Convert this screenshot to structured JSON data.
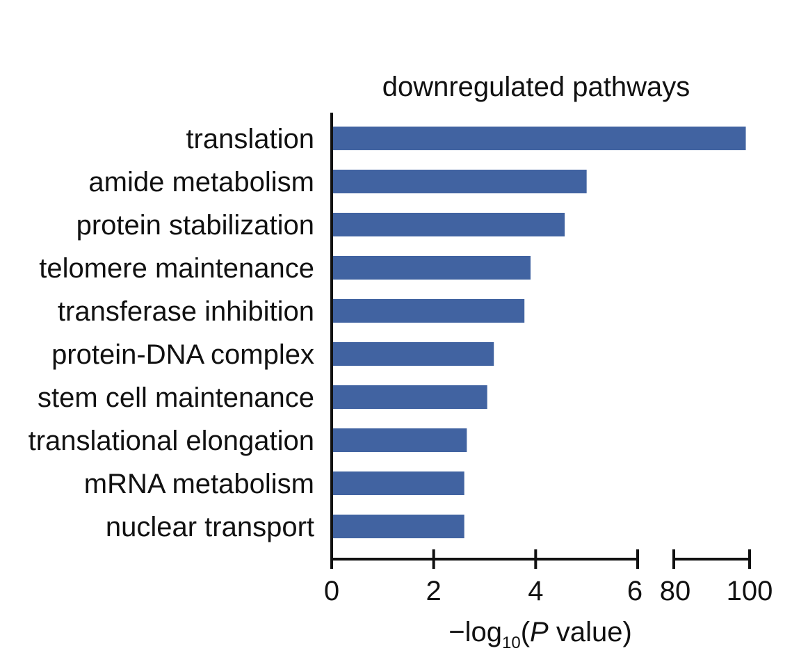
{
  "chart_data": {
    "type": "bar",
    "orientation": "horizontal",
    "title": "downregulated pathways",
    "xlabel": {
      "prefix": "−log",
      "subscript": "10",
      "open": "(",
      "italic": "P",
      "rest": " value)"
    },
    "ylabel": "",
    "categories": [
      "translation",
      "amide metabolism",
      "protein stabilization",
      "telomere maintenance",
      "transferase inhibition",
      "protein-DNA complex",
      "stem cell maintenance",
      "translational elongation",
      "mRNA metabolism",
      "nuclear transport"
    ],
    "values": [
      99,
      5.0,
      4.57,
      3.9,
      3.78,
      3.18,
      3.05,
      2.65,
      2.6,
      2.6
    ],
    "bar_color": "#4163a1",
    "axis_break": {
      "segments": [
        {
          "range": [
            0,
            6
          ],
          "ticks": [
            0,
            2,
            4,
            6
          ]
        },
        {
          "range": [
            80,
            100
          ],
          "ticks": [
            80,
            100
          ]
        }
      ]
    },
    "grid": false,
    "legend": "none"
  }
}
